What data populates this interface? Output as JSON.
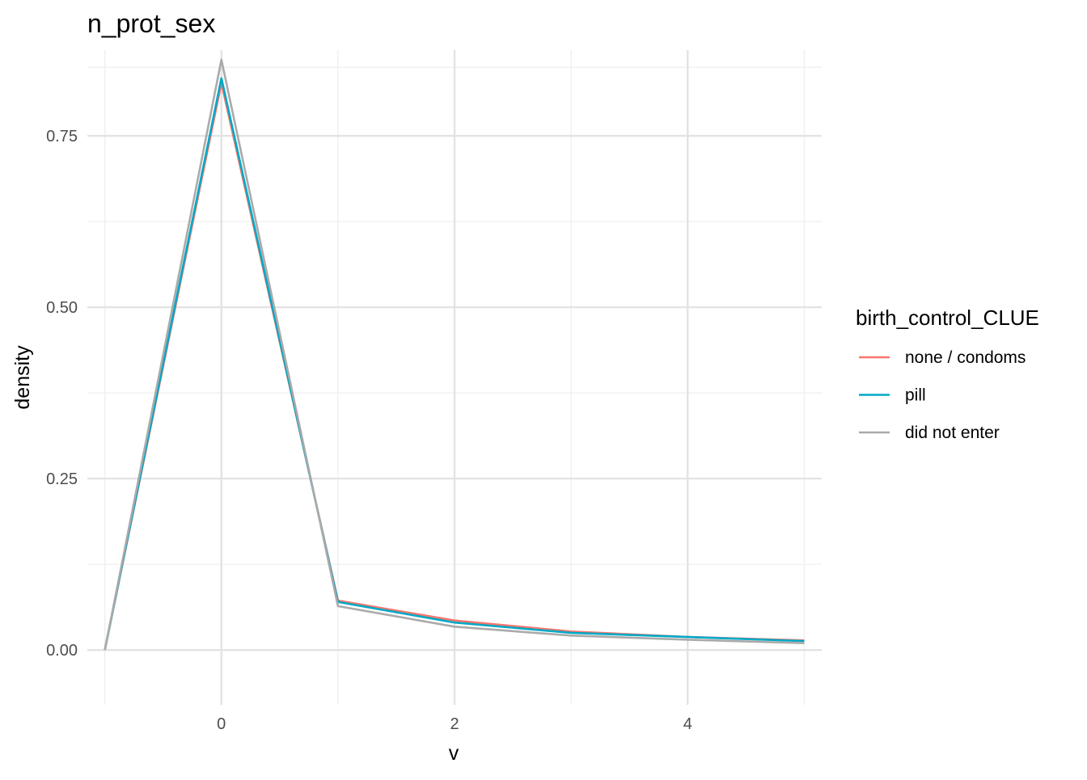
{
  "chart_data": {
    "type": "line",
    "title": "n_prot_sex",
    "xlabel": "v",
    "ylabel": "density",
    "xlim": [
      -1.15,
      5.15
    ],
    "ylim": [
      -0.08,
      0.875
    ],
    "x_ticks": [
      0,
      2,
      4
    ],
    "x_tick_labels": [
      "0",
      "2",
      "4"
    ],
    "x_minor_ticks": [
      -1,
      1,
      3,
      5
    ],
    "y_ticks": [
      0,
      0.25,
      0.5,
      0.75
    ],
    "y_tick_labels": [
      "0.00",
      "0.25",
      "0.50",
      "0.75"
    ],
    "y_minor_ticks": [
      0.125,
      0.375,
      0.625,
      0.85
    ],
    "grid": true,
    "legend": {
      "title": "birth_control_CLUE",
      "position": "right"
    },
    "x": [
      -1,
      0,
      1,
      2,
      3,
      4,
      5
    ],
    "series": [
      {
        "name": "none / condoms",
        "color": "#F8766D",
        "values": [
          0.0,
          0.827,
          0.072,
          0.043,
          0.027,
          0.019,
          0.014
        ]
      },
      {
        "name": "pill",
        "color": "#00A9C6",
        "values": [
          0.0,
          0.834,
          0.07,
          0.04,
          0.025,
          0.019,
          0.013
        ]
      },
      {
        "name": "did not enter",
        "color": "#AAAAAA",
        "values": [
          0.0,
          0.861,
          0.064,
          0.034,
          0.021,
          0.015,
          0.01
        ]
      }
    ]
  }
}
